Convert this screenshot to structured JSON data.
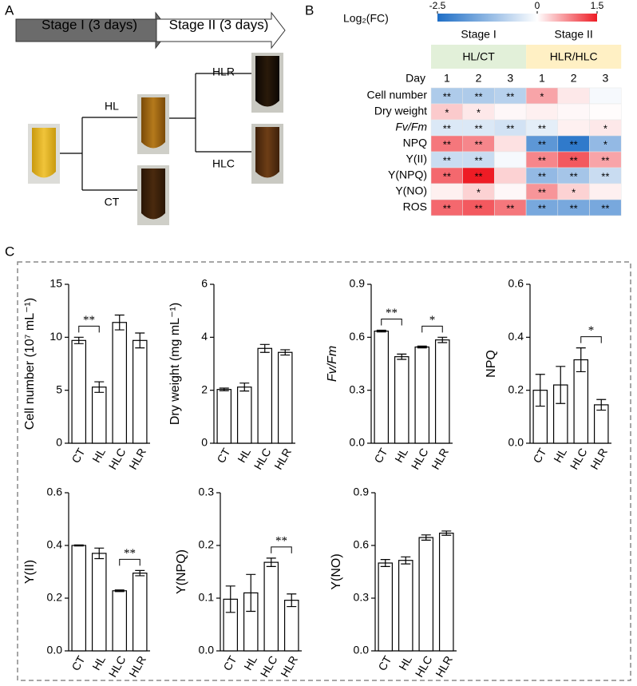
{
  "panel_a": {
    "label": "A",
    "stages": [
      "Stage I (3 days)",
      "Stage II (3 days)"
    ],
    "branches": [
      "HL",
      "CT",
      "HLR",
      "HLC"
    ]
  },
  "panel_c": {
    "label": "C"
  },
  "chart_data": [
    {
      "type": "heatmap",
      "label": "B",
      "colorbar_title": "Log₂(FC)",
      "zlim": [
        -2.5,
        1.5
      ],
      "zticks": [
        -2.5,
        0,
        1.5
      ],
      "colors": [
        "#1e6ec6",
        "#ffffff",
        "#ee1c25"
      ],
      "groups": [
        {
          "name": "Stage I",
          "comparison": "HL/CT",
          "days": [
            1,
            2,
            3
          ]
        },
        {
          "name": "Stage II",
          "comparison": "HLR/HLC",
          "days": [
            1,
            2,
            3
          ]
        }
      ],
      "day_label": "Day",
      "rows": [
        "Cell number",
        "Dry weight",
        "Fv/Fm",
        "NPQ",
        "Y(II)",
        "Y(NPQ)",
        "Y(NO)",
        "ROS"
      ],
      "values": [
        [
          -0.9,
          -0.9,
          -0.8,
          0.6,
          0.15,
          -0.1
        ],
        [
          0.35,
          0.15,
          0.05,
          0.1,
          0.05,
          0.02
        ],
        [
          -0.4,
          -0.4,
          -0.5,
          -0.3,
          0.1,
          0.15
        ],
        [
          0.9,
          0.8,
          0.2,
          -1.8,
          -2.3,
          -1.2
        ],
        [
          -0.6,
          -0.6,
          -0.1,
          0.8,
          1.1,
          0.6
        ],
        [
          1.0,
          1.5,
          0.3,
          -1.2,
          -1.0,
          -0.6
        ],
        [
          0.1,
          0.3,
          0.05,
          0.7,
          0.3,
          0.1
        ],
        [
          1.0,
          1.1,
          0.9,
          -1.5,
          -1.5,
          -1.5
        ]
      ],
      "annotations": [
        [
          "**",
          "**",
          "**",
          "*",
          null,
          null
        ],
        [
          "*",
          "*",
          null,
          null,
          null,
          null
        ],
        [
          "**",
          "**",
          "**",
          "**",
          null,
          "*"
        ],
        [
          "**",
          "**",
          null,
          "**",
          "**",
          "*"
        ],
        [
          "**",
          "**",
          null,
          "**",
          "**",
          "**"
        ],
        [
          "**",
          "**",
          null,
          "**",
          "**",
          "**"
        ],
        [
          null,
          "*",
          null,
          "**",
          "*",
          null
        ],
        [
          "**",
          "**",
          "**",
          "**",
          "**",
          "**"
        ]
      ]
    },
    {
      "type": "bar",
      "ylabel": "Cell number (10⁷ mL⁻¹)",
      "categories": [
        "CT",
        "HL",
        "HLC",
        "HLR"
      ],
      "values": [
        9.7,
        5.3,
        11.4,
        9.7
      ],
      "errors": [
        0.3,
        0.5,
        0.7,
        0.7
      ],
      "ylim": [
        0,
        15
      ],
      "yticks": [
        0,
        5,
        10,
        15
      ],
      "significance": [
        {
          "pair": [
            "CT",
            "HL"
          ],
          "label": "**"
        }
      ]
    },
    {
      "type": "bar",
      "ylabel": "Dry weight (mg mL⁻¹)",
      "categories": [
        "CT",
        "HL",
        "HLC",
        "HLR"
      ],
      "values": [
        2.03,
        2.12,
        3.58,
        3.43
      ],
      "errors": [
        0.05,
        0.15,
        0.15,
        0.1
      ],
      "ylim": [
        0,
        6
      ],
      "yticks": [
        0,
        2,
        4,
        6
      ]
    },
    {
      "type": "bar",
      "ylabel": "Fv/Fm",
      "categories": [
        "CT",
        "HL",
        "HLC",
        "HLR"
      ],
      "values": [
        0.635,
        0.49,
        0.545,
        0.585
      ],
      "errors": [
        0.005,
        0.015,
        0.005,
        0.015
      ],
      "ylim": [
        0,
        0.9
      ],
      "yticks": [
        {
          "value": 0,
          "label": "0.0"
        },
        0.3,
        0.6,
        0.9
      ],
      "significance": [
        {
          "pair": [
            "CT",
            "HL"
          ],
          "label": "**"
        },
        {
          "pair": [
            "HLC",
            "HLR"
          ],
          "label": "*"
        }
      ]
    },
    {
      "type": "bar",
      "ylabel": "NPQ",
      "categories": [
        "CT",
        "HL",
        "HLC",
        "HLR"
      ],
      "values": [
        0.2,
        0.22,
        0.315,
        0.145
      ],
      "errors": [
        0.06,
        0.07,
        0.045,
        0.02
      ],
      "ylim": [
        0,
        0.6
      ],
      "yticks": [
        {
          "value": 0,
          "label": "0.0"
        },
        0.2,
        0.4,
        0.6
      ],
      "significance": [
        {
          "pair": [
            "HLC",
            "HLR"
          ],
          "label": "*"
        }
      ]
    },
    {
      "type": "bar",
      "ylabel": "Y(II)",
      "categories": [
        "CT",
        "HL",
        "HLC",
        "HLR"
      ],
      "values": [
        0.4,
        0.37,
        0.228,
        0.295
      ],
      "errors": [
        0.002,
        0.02,
        0.003,
        0.01
      ],
      "ylim": [
        0,
        0.6
      ],
      "yticks": [
        {
          "value": 0,
          "label": "0.0"
        },
        0.2,
        0.4,
        0.6
      ],
      "significance": [
        {
          "pair": [
            "HLC",
            "HLR"
          ],
          "label": "**"
        }
      ]
    },
    {
      "type": "bar",
      "ylabel": "Y(NPQ)",
      "categories": [
        "CT",
        "HL",
        "HLC",
        "HLR"
      ],
      "values": [
        0.098,
        0.11,
        0.168,
        0.096
      ],
      "errors": [
        0.025,
        0.035,
        0.008,
        0.012
      ],
      "ylim": [
        0,
        0.3
      ],
      "yticks": [
        {
          "value": 0,
          "label": "0.0"
        },
        0.1,
        0.2,
        0.3
      ],
      "significance": [
        {
          "pair": [
            "HLC",
            "HLR"
          ],
          "label": "**"
        }
      ]
    },
    {
      "type": "bar",
      "ylabel": "Y(NO)",
      "categories": [
        "CT",
        "HL",
        "HLC",
        "HLR"
      ],
      "values": [
        0.5,
        0.515,
        0.645,
        0.67
      ],
      "errors": [
        0.02,
        0.02,
        0.015,
        0.012
      ],
      "ylim": [
        0,
        0.9
      ],
      "yticks": [
        {
          "value": 0,
          "label": "0.0"
        },
        0.3,
        0.6,
        0.9
      ]
    }
  ]
}
